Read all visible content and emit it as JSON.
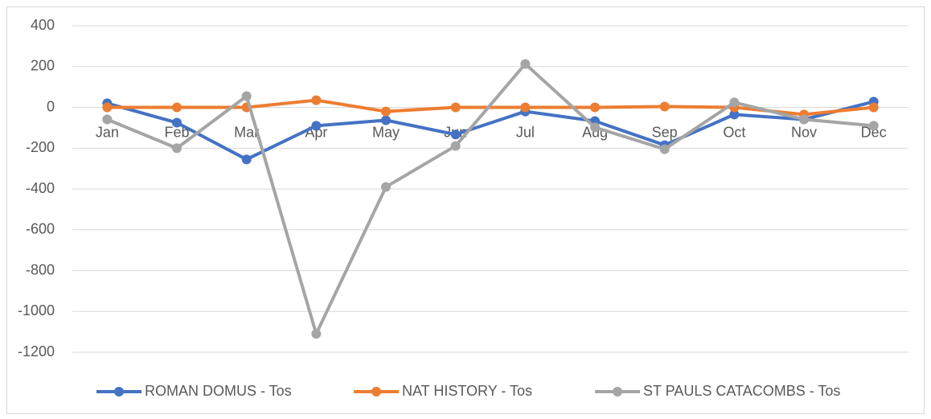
{
  "chart_data": {
    "type": "line",
    "categories": [
      "Jan",
      "Feb",
      "Mar",
      "Apr",
      "May",
      "Jun",
      "Jul",
      "Aug",
      "Sep",
      "Oct",
      "Nov",
      "Dec"
    ],
    "series": [
      {
        "name": "ROMAN DOMUS - Tos",
        "color": "#4472c4",
        "values": [
          20,
          -75,
          -255,
          -90,
          -63,
          -133,
          -20,
          -67,
          -185,
          -35,
          -59,
          28
        ]
      },
      {
        "name": "NAT HISTORY - Tos",
        "color": "#ed7d31",
        "values": [
          0,
          0,
          0,
          35,
          -20,
          0,
          0,
          0,
          4,
          0,
          -35,
          0
        ]
      },
      {
        "name": "ST PAULS CATACOMBS - Tos",
        "color": "#a5a5a5",
        "values": [
          -59,
          -200,
          55,
          -1110,
          -390,
          -189,
          213,
          -98,
          -205,
          24,
          -59,
          -90
        ]
      }
    ],
    "ylim": [
      -1200,
      400
    ],
    "yticks": [
      -1200,
      -1000,
      -800,
      -600,
      -400,
      -200,
      0,
      200,
      400
    ],
    "grid": true,
    "legend": "bottom"
  }
}
